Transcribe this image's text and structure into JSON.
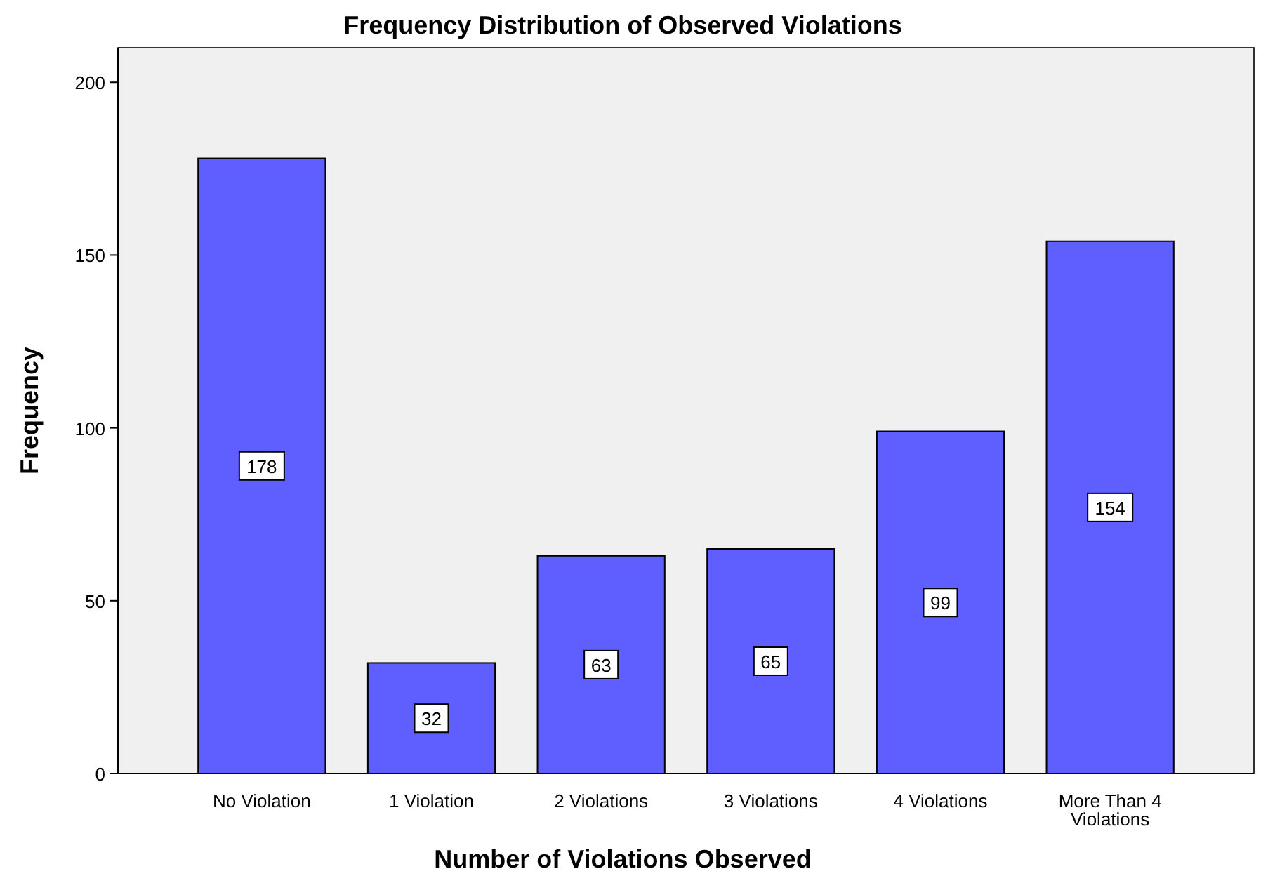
{
  "chart_data": {
    "type": "bar",
    "title": "Frequency Distribution of Observed Violations",
    "xlabel": "Number of Violations Observed",
    "ylabel": "Frequency",
    "categories": [
      "No Violation",
      "1 Violation",
      "2 Violations",
      "3 Violations",
      "4 Violations",
      "More Than 4 Violations"
    ],
    "values": [
      178,
      32,
      63,
      65,
      99,
      154
    ],
    "color": "#5f5fff",
    "ylim": [
      0,
      210
    ],
    "yticks": [
      0,
      50,
      100,
      150,
      200
    ],
    "grid": false,
    "data_labels": true
  }
}
